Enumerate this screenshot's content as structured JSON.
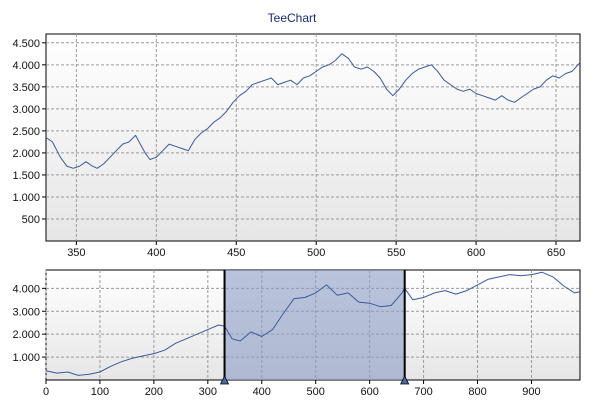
{
  "chart_data": [
    {
      "type": "line",
      "title": "TeeChart",
      "xlim": [
        331,
        665
      ],
      "ylim": [
        0,
        4700
      ],
      "x_ticks": [
        350,
        400,
        450,
        500,
        550,
        600,
        650
      ],
      "y_ticks": [
        500,
        1000,
        1500,
        2000,
        2500,
        3000,
        3500,
        4000,
        4500
      ],
      "y_tick_labels": [
        "500",
        "1.000",
        "1.500",
        "2.000",
        "2.500",
        "3.000",
        "3.500",
        "4.000",
        "4.500"
      ],
      "grid": true,
      "series": [
        {
          "color": "#3a5a9a",
          "points": [
            [
              331,
              2350
            ],
            [
              335,
              2250
            ],
            [
              340,
              1900
            ],
            [
              344,
              1700
            ],
            [
              348,
              1650
            ],
            [
              352,
              1700
            ],
            [
              356,
              1800
            ],
            [
              360,
              1700
            ],
            [
              363,
              1650
            ],
            [
              367,
              1750
            ],
            [
              371,
              1900
            ],
            [
              375,
              2050
            ],
            [
              379,
              2200
            ],
            [
              383,
              2250
            ],
            [
              387,
              2400
            ],
            [
              390,
              2200
            ],
            [
              393,
              2000
            ],
            [
              396,
              1850
            ],
            [
              400,
              1900
            ],
            [
              404,
              2050
            ],
            [
              408,
              2200
            ],
            [
              412,
              2150
            ],
            [
              416,
              2100
            ],
            [
              420,
              2050
            ],
            [
              424,
              2300
            ],
            [
              428,
              2450
            ],
            [
              432,
              2550
            ],
            [
              436,
              2700
            ],
            [
              440,
              2800
            ],
            [
              444,
              2950
            ],
            [
              448,
              3150
            ],
            [
              452,
              3300
            ],
            [
              456,
              3400
            ],
            [
              460,
              3550
            ],
            [
              464,
              3600
            ],
            [
              468,
              3650
            ],
            [
              472,
              3700
            ],
            [
              476,
              3550
            ],
            [
              480,
              3600
            ],
            [
              484,
              3650
            ],
            [
              488,
              3550
            ],
            [
              492,
              3700
            ],
            [
              496,
              3750
            ],
            [
              500,
              3850
            ],
            [
              504,
              3950
            ],
            [
              508,
              4000
            ],
            [
              512,
              4100
            ],
            [
              516,
              4250
            ],
            [
              520,
              4150
            ],
            [
              524,
              3950
            ],
            [
              528,
              3900
            ],
            [
              532,
              3950
            ],
            [
              536,
              3850
            ],
            [
              540,
              3700
            ],
            [
              544,
              3450
            ],
            [
              548,
              3300
            ],
            [
              552,
              3450
            ],
            [
              556,
              3650
            ],
            [
              560,
              3800
            ],
            [
              564,
              3900
            ],
            [
              568,
              3950
            ],
            [
              572,
              4000
            ],
            [
              576,
              3850
            ],
            [
              580,
              3650
            ],
            [
              584,
              3550
            ],
            [
              588,
              3450
            ],
            [
              592,
              3400
            ],
            [
              596,
              3450
            ],
            [
              600,
              3350
            ],
            [
              604,
              3300
            ],
            [
              608,
              3250
            ],
            [
              612,
              3200
            ],
            [
              616,
              3300
            ],
            [
              620,
              3200
            ],
            [
              624,
              3150
            ],
            [
              628,
              3250
            ],
            [
              632,
              3350
            ],
            [
              636,
              3450
            ],
            [
              640,
              3500
            ],
            [
              644,
              3650
            ],
            [
              648,
              3750
            ],
            [
              652,
              3700
            ],
            [
              656,
              3800
            ],
            [
              660,
              3850
            ],
            [
              665,
              4050
            ]
          ]
        }
      ]
    },
    {
      "type": "line",
      "xlim": [
        0,
        990
      ],
      "ylim": [
        0,
        4800
      ],
      "x_ticks": [
        0,
        100,
        200,
        300,
        400,
        500,
        600,
        700,
        800,
        900
      ],
      "y_ticks": [
        1000,
        2000,
        3000,
        4000
      ],
      "y_tick_labels": [
        "1.000",
        "2.000",
        "3.000",
        "4.000"
      ],
      "grid": true,
      "selection": [
        331,
        665
      ],
      "series": [
        {
          "color": "#3a5a9a",
          "points": [
            [
              0,
              400
            ],
            [
              20,
              300
            ],
            [
              40,
              350
            ],
            [
              60,
              200
            ],
            [
              80,
              250
            ],
            [
              100,
              350
            ],
            [
              120,
              600
            ],
            [
              140,
              800
            ],
            [
              160,
              950
            ],
            [
              180,
              1050
            ],
            [
              200,
              1150
            ],
            [
              220,
              1300
            ],
            [
              240,
              1600
            ],
            [
              260,
              1800
            ],
            [
              280,
              2000
            ],
            [
              300,
              2200
            ],
            [
              320,
              2400
            ],
            [
              331,
              2350
            ],
            [
              345,
              1800
            ],
            [
              360,
              1700
            ],
            [
              380,
              2100
            ],
            [
              400,
              1900
            ],
            [
              420,
              2200
            ],
            [
              440,
              2900
            ],
            [
              460,
              3550
            ],
            [
              480,
              3600
            ],
            [
              500,
              3800
            ],
            [
              520,
              4150
            ],
            [
              540,
              3700
            ],
            [
              560,
              3800
            ],
            [
              580,
              3400
            ],
            [
              600,
              3350
            ],
            [
              620,
              3200
            ],
            [
              640,
              3250
            ],
            [
              660,
              3800
            ],
            [
              665,
              4000
            ],
            [
              680,
              3500
            ],
            [
              700,
              3600
            ],
            [
              720,
              3800
            ],
            [
              740,
              3900
            ],
            [
              760,
              3750
            ],
            [
              780,
              3900
            ],
            [
              800,
              4150
            ],
            [
              820,
              4400
            ],
            [
              840,
              4500
            ],
            [
              860,
              4600
            ],
            [
              880,
              4550
            ],
            [
              900,
              4600
            ],
            [
              920,
              4700
            ],
            [
              940,
              4500
            ],
            [
              960,
              4100
            ],
            [
              980,
              3800
            ],
            [
              990,
              3850
            ]
          ]
        }
      ]
    }
  ]
}
